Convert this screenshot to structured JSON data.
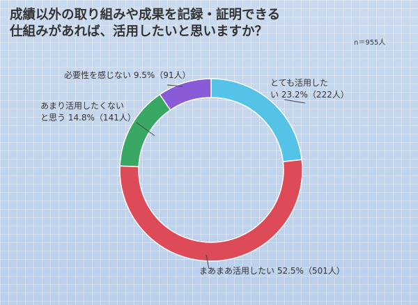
{
  "title_lines": [
    "成績以外の取り組みや成果を記録・証明できる",
    "仕組みがあれば、活用したいと思いますか？"
  ],
  "sample_size": "n＝955人",
  "chart_data": {
    "type": "pie",
    "donut": true,
    "title": "成績以外の取り組みや成果を記録・証明できる仕組みがあれば、活用したいと思いますか？",
    "slices": [
      {
        "label": "とても活用したい",
        "value": 23.2,
        "count": "222人",
        "color": "#55c3e8",
        "label_lines": [
          "とても活用した",
          "い 23.2%（222人）"
        ]
      },
      {
        "label": "まあまあ活用したい",
        "value": 52.5,
        "count": "501人",
        "color": "#dd4a58",
        "label_lines": [
          "まあまあ活用したい 52.5%（501人）"
        ]
      },
      {
        "label": "あまり活用したくないと思う",
        "value": 14.8,
        "count": "141人",
        "color": "#3aa865",
        "label_lines": [
          "あまり活用したくない",
          "と思う 14.8%（141人）"
        ]
      },
      {
        "label": "必要性を感じない",
        "value": 9.5,
        "count": "91人",
        "color": "#8a5bd6",
        "label_lines": [
          "必要性を感じない 9.5%（91人）"
        ]
      }
    ]
  }
}
